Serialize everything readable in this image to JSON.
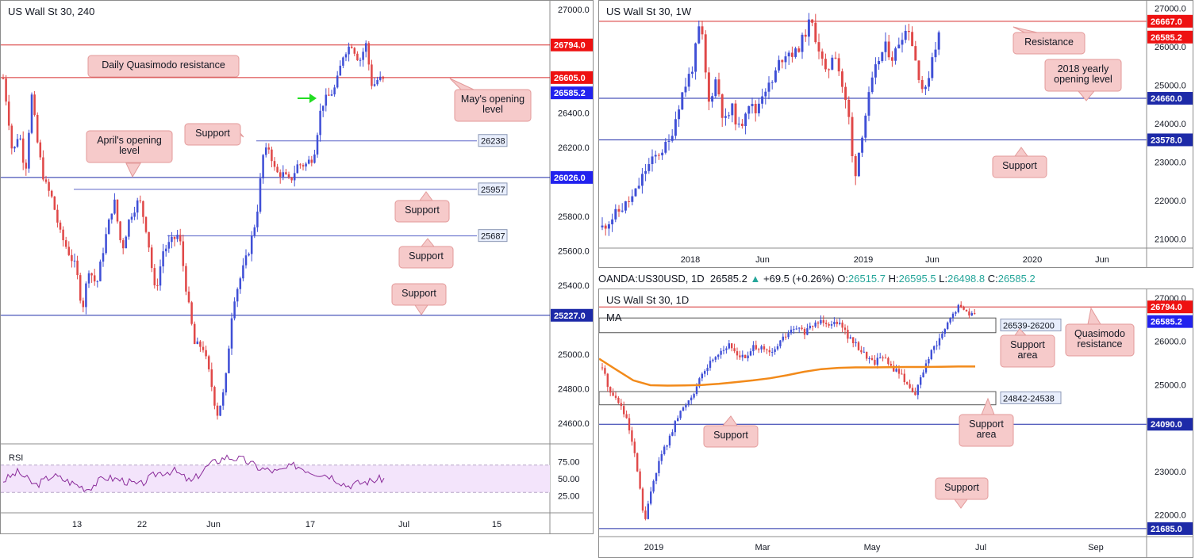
{
  "colors": {
    "up": "#3f4fd6",
    "down": "#e04848",
    "resistance": "#d62b2b",
    "support": "#1d2aa8",
    "callout_fill": "#f6caca",
    "callout_stroke": "#e39a9a",
    "rsi_line": "#8a2b9a",
    "rsi_band": "#f3e4fb",
    "ma": "#f28a1a",
    "price_tag_blue": "#2222ee",
    "price_tag_red": "#ee1111",
    "arrow": "#22dd22"
  },
  "charts": {
    "h4": {
      "title": "US Wall St 30, 240",
      "y_ticks": [
        "27000.0",
        "26400.0",
        "26200.0",
        "25800.0",
        "25600.0",
        "25400.0",
        "25000.0",
        "24800.0",
        "24600.0"
      ],
      "x_ticks": [
        "13",
        "22",
        "Jun",
        "17",
        "Jul",
        "15"
      ],
      "levels": [
        {
          "value": 26794,
          "label": "26794.0",
          "kind": "resistance"
        },
        {
          "value": 26605,
          "label": "26605.0",
          "kind": "resistance"
        },
        {
          "value": 26585.2,
          "label": "26585.2",
          "kind": "current"
        },
        {
          "value": 26238,
          "label": "26238",
          "kind": "support-light"
        },
        {
          "value": 26026,
          "label": "26026.0",
          "kind": "support"
        },
        {
          "value": 25957,
          "label": "25957",
          "kind": "support-light"
        },
        {
          "value": 25687,
          "label": "25687",
          "kind": "support-light"
        },
        {
          "value": 25227,
          "label": "25227.0",
          "kind": "support"
        }
      ],
      "callouts": [
        "Daily Quasimodo resistance",
        "May's opening level",
        "Support",
        "April's opening level",
        "Support",
        "Support",
        "Support"
      ],
      "rsi": {
        "label": "RSI",
        "ticks": [
          "75.00",
          "50.00",
          "25.00"
        ],
        "upper": 70,
        "lower": 30
      }
    },
    "weekly": {
      "title": "US Wall St 30, 1W",
      "y_ticks": [
        "27000.0",
        "26000.0",
        "25000.0",
        "24000.0",
        "23000.0",
        "22000.0",
        "21000.0"
      ],
      "x_ticks": [
        "2018",
        "Jun",
        "2019",
        "Jun",
        "2020",
        "Jun"
      ],
      "levels": [
        {
          "value": 26667,
          "label": "26667.0",
          "kind": "resistance"
        },
        {
          "value": 26585.2,
          "label": "26585.2",
          "kind": "current-red"
        },
        {
          "value": 24660,
          "label": "24660.0",
          "kind": "support"
        },
        {
          "value": 23578,
          "label": "23578.0",
          "kind": "support"
        }
      ],
      "callouts": [
        "Resistance",
        "2018 yearly opening level",
        "Support"
      ]
    },
    "daily": {
      "title": "US Wall St 30, 1D",
      "ma_label": "MA",
      "y_ticks": [
        "27000.0",
        "26000.0",
        "25000.0",
        "23000.0",
        "22000.0"
      ],
      "x_ticks": [
        "2019",
        "Mar",
        "May",
        "Jul",
        "Sep"
      ],
      "levels": [
        {
          "value": 26794,
          "label": "26794.0",
          "kind": "resistance"
        },
        {
          "value": 26585.2,
          "label": "26585.2",
          "kind": "current"
        },
        {
          "value": 24090,
          "label": "24090.0",
          "kind": "support"
        },
        {
          "value": 21685,
          "label": "21685.0",
          "kind": "support"
        }
      ],
      "zones": [
        {
          "from": 26200,
          "to": 26539,
          "label": "26539-26200"
        },
        {
          "from": 24538,
          "to": 24842,
          "label": "24842-24538"
        }
      ],
      "callouts": [
        "Support area",
        "Quasimodo resistance",
        "Support",
        "Support area",
        "Support"
      ]
    }
  },
  "symbol_bar": {
    "symbol": "OANDA:US30USD, 1D",
    "price": "26585.2",
    "change_arrow": "▲",
    "change": "+69.5 (+0.26%)",
    "o_label": "O:",
    "o": "26515.7",
    "h_label": "H:",
    "h": "26595.5",
    "l_label": "L:",
    "l": "26498.8",
    "c_label": "C:",
    "c": "26585.2"
  },
  "chart_data": [
    {
      "type": "candlestick",
      "title": "US Wall St 30, 240",
      "ylim": [
        24500,
        27050
      ],
      "x_ticks": [
        "13",
        "22",
        "Jun",
        "17",
        "Jul",
        "15"
      ],
      "y_ticks": [
        27000,
        26400,
        26200,
        25800,
        25600,
        25400,
        25000,
        24800,
        24600
      ],
      "path": [
        [
          0,
          26600
        ],
        [
          6,
          26400
        ],
        [
          12,
          26150
        ],
        [
          20,
          26300
        ],
        [
          28,
          26050
        ],
        [
          36,
          26500
        ],
        [
          44,
          26200
        ],
        [
          52,
          26000
        ],
        [
          62,
          25900
        ],
        [
          72,
          25700
        ],
        [
          82,
          25600
        ],
        [
          92,
          25500
        ],
        [
          100,
          25260
        ],
        [
          108,
          25500
        ],
        [
          118,
          25400
        ],
        [
          128,
          25650
        ],
        [
          140,
          25900
        ],
        [
          150,
          25600
        ],
        [
          160,
          25800
        ],
        [
          172,
          25900
        ],
        [
          182,
          25700
        ],
        [
          192,
          25350
        ],
        [
          202,
          25600
        ],
        [
          212,
          25650
        ],
        [
          222,
          25700
        ],
        [
          232,
          25350
        ],
        [
          242,
          25050
        ],
        [
          252,
          25050
        ],
        [
          262,
          24850
        ],
        [
          270,
          24650
        ],
        [
          280,
          24800
        ],
        [
          290,
          25300
        ],
        [
          300,
          25450
        ],
        [
          310,
          25600
        ],
        [
          320,
          25800
        ],
        [
          328,
          26150
        ],
        [
          336,
          26200
        ],
        [
          344,
          26050
        ],
        [
          352,
          26050
        ],
        [
          362,
          26000
        ],
        [
          372,
          26100
        ],
        [
          382,
          26100
        ],
        [
          392,
          26150
        ],
        [
          402,
          26450
        ],
        [
          412,
          26500
        ],
        [
          420,
          26550
        ],
        [
          430,
          26750
        ],
        [
          440,
          26800
        ],
        [
          450,
          26700
        ],
        [
          458,
          26800
        ],
        [
          466,
          26550
        ],
        [
          474,
          26600
        ],
        [
          482,
          26580
        ]
      ],
      "series": [
        {
          "name": "RSI",
          "values": [
            45,
            60,
            40,
            55,
            45,
            35,
            52,
            48,
            40,
            58,
            62,
            45,
            70,
            82,
            78,
            65,
            60,
            70,
            60,
            55,
            40,
            45,
            50
          ]
        }
      ],
      "levels": [
        26794,
        26605,
        26238,
        26026,
        25957,
        25687,
        25227
      ],
      "last": 26585.2
    },
    {
      "type": "candlestick",
      "title": "US Wall St 30, 1W",
      "ylim": [
        20800,
        27200
      ],
      "x_ticks": [
        "2018",
        "Jun",
        "2019",
        "Jun",
        "2020",
        "Jun"
      ],
      "y_ticks": [
        27000,
        26000,
        25000,
        24000,
        23000,
        22000,
        21000
      ],
      "path": [
        [
          0,
          21300
        ],
        [
          20,
          21700
        ],
        [
          40,
          22100
        ],
        [
          55,
          22800
        ],
        [
          70,
          23200
        ],
        [
          85,
          23500
        ],
        [
          100,
          24700
        ],
        [
          115,
          25500
        ],
        [
          125,
          26700
        ],
        [
          135,
          24500
        ],
        [
          145,
          25200
        ],
        [
          155,
          24000
        ],
        [
          165,
          24400
        ],
        [
          175,
          23800
        ],
        [
          185,
          24600
        ],
        [
          195,
          24300
        ],
        [
          205,
          24900
        ],
        [
          215,
          25000
        ],
        [
          225,
          25600
        ],
        [
          235,
          25900
        ],
        [
          245,
          25800
        ],
        [
          255,
          26200
        ],
        [
          265,
          26700
        ],
        [
          275,
          26000
        ],
        [
          285,
          25200
        ],
        [
          295,
          26000
        ],
        [
          305,
          25000
        ],
        [
          315,
          24000
        ],
        [
          320,
          22500
        ],
        [
          330,
          23700
        ],
        [
          340,
          24800
        ],
        [
          350,
          25600
        ],
        [
          360,
          26000
        ],
        [
          370,
          25700
        ],
        [
          380,
          26300
        ],
        [
          390,
          26500
        ],
        [
          400,
          25500
        ],
        [
          410,
          24700
        ],
        [
          420,
          25800
        ],
        [
          428,
          26300
        ],
        [
          432,
          26600
        ]
      ],
      "levels": [
        26667,
        24660,
        23578
      ],
      "last": 26585.2
    },
    {
      "type": "candlestick",
      "title": "US Wall St 30, 1D",
      "ylim": [
        21500,
        27200
      ],
      "x_ticks": [
        "2019",
        "Mar",
        "May",
        "Jul",
        "Sep"
      ],
      "y_ticks": [
        27000,
        26000,
        25000,
        23000,
        22000
      ],
      "path": [
        [
          0,
          25400
        ],
        [
          10,
          24800
        ],
        [
          20,
          24600
        ],
        [
          30,
          24100
        ],
        [
          40,
          23200
        ],
        [
          50,
          21800
        ],
        [
          60,
          22800
        ],
        [
          70,
          23400
        ],
        [
          80,
          23800
        ],
        [
          90,
          24300
        ],
        [
          100,
          24600
        ],
        [
          110,
          24900
        ],
        [
          120,
          25300
        ],
        [
          130,
          25600
        ],
        [
          140,
          25800
        ],
        [
          150,
          25900
        ],
        [
          160,
          25700
        ],
        [
          170,
          25600
        ],
        [
          180,
          25900
        ],
        [
          190,
          25800
        ],
        [
          200,
          25700
        ],
        [
          210,
          26000
        ],
        [
          220,
          26200
        ],
        [
          230,
          26300
        ],
        [
          240,
          26200
        ],
        [
          250,
          26400
        ],
        [
          260,
          26500
        ],
        [
          270,
          26400
        ],
        [
          280,
          26500
        ],
        [
          290,
          26100
        ],
        [
          300,
          25900
        ],
        [
          310,
          25700
        ],
        [
          320,
          25500
        ],
        [
          330,
          25700
        ],
        [
          340,
          25400
        ],
        [
          350,
          25300
        ],
        [
          360,
          25000
        ],
        [
          370,
          24800
        ],
        [
          380,
          25400
        ],
        [
          390,
          25800
        ],
        [
          400,
          26100
        ],
        [
          410,
          26500
        ],
        [
          420,
          26800
        ],
        [
          430,
          26700
        ],
        [
          440,
          26585
        ]
      ],
      "ma": [
        [
          0,
          25600
        ],
        [
          20,
          25350
        ],
        [
          40,
          25100
        ],
        [
          60,
          24990
        ],
        [
          80,
          24980
        ],
        [
          100,
          24985
        ],
        [
          120,
          24995
        ],
        [
          140,
          25020
        ],
        [
          160,
          25060
        ],
        [
          180,
          25100
        ],
        [
          200,
          25150
        ],
        [
          220,
          25220
        ],
        [
          240,
          25300
        ],
        [
          260,
          25360
        ],
        [
          280,
          25390
        ],
        [
          300,
          25400
        ],
        [
          320,
          25400
        ],
        [
          340,
          25405
        ],
        [
          360,
          25410
        ],
        [
          380,
          25410
        ],
        [
          400,
          25415
        ],
        [
          420,
          25420
        ],
        [
          440,
          25420
        ]
      ],
      "zones": [
        [
          26200,
          26539
        ],
        [
          24538,
          24842
        ]
      ],
      "levels": [
        26794,
        24090,
        21685
      ],
      "last": 26585.2
    }
  ]
}
